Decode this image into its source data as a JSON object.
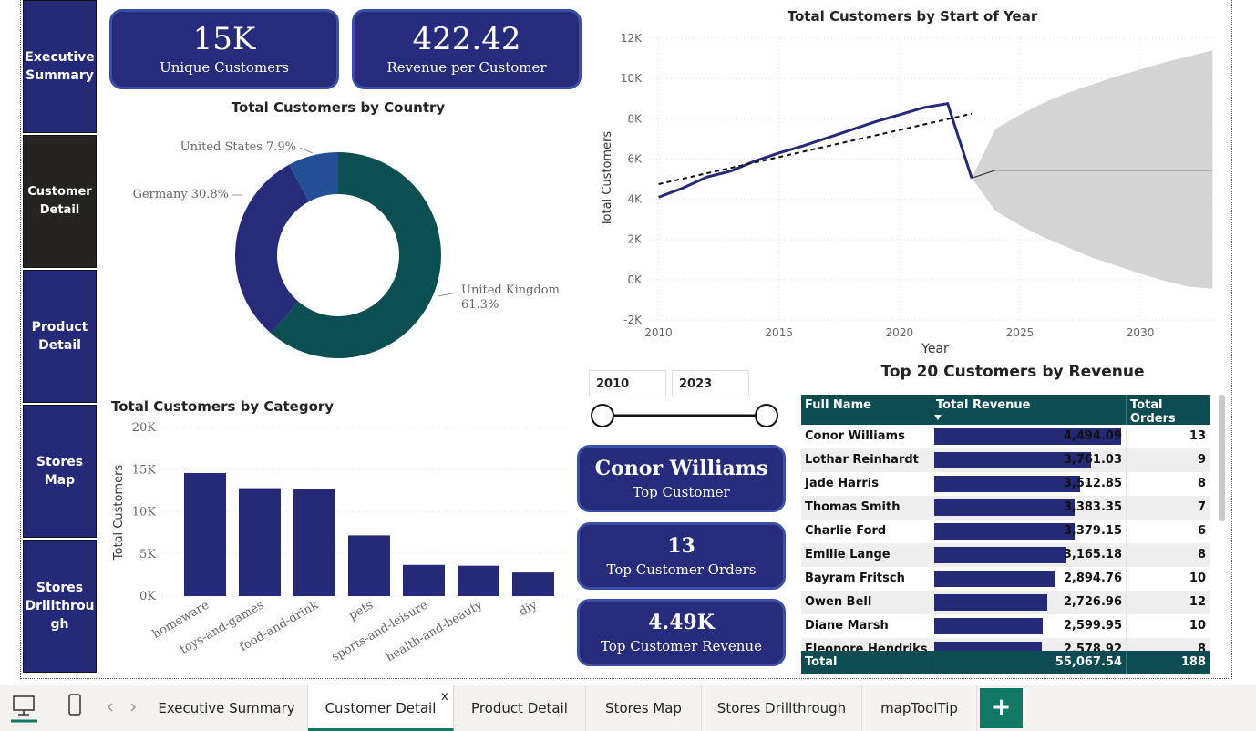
{
  "nav": {
    "items": [
      "Executive Summary",
      "Customer Detail",
      "Product Detail",
      "Stores Map",
      "Stores Drillthrough"
    ],
    "active": 1
  },
  "cards": [
    {
      "value": "15K",
      "label": "Unique Customers"
    },
    {
      "value": "422.42",
      "label": "Revenue per Customer"
    },
    {
      "value": "Conor Williams",
      "label": "Top Customer"
    },
    {
      "value": "13",
      "label": "Top Customer Orders"
    },
    {
      "value": "4.49K",
      "label": "Top Customer Revenue"
    }
  ],
  "chart_data": [
    {
      "type": "pie",
      "title": "Total Customers by Country",
      "donut": true,
      "categories": [
        "United Kingdom",
        "Germany",
        "United States"
      ],
      "values": [
        61.3,
        30.8,
        7.9
      ],
      "value_labels": [
        "61.3%",
        "30.8%",
        "7.9%"
      ],
      "colors": [
        "#0b4f52",
        "#262c7a",
        "#234f96"
      ]
    },
    {
      "type": "line",
      "title": "Total Customers by Start of Year",
      "x": [
        2010,
        2011,
        2012,
        2013,
        2014,
        2015,
        2016,
        2017,
        2018,
        2019,
        2020,
        2021,
        2022,
        2023
      ],
      "values": [
        4100,
        4550,
        5100,
        5400,
        5900,
        6300,
        6650,
        7050,
        7450,
        7850,
        8200,
        8550,
        8750,
        5050
      ],
      "color": "#252a78",
      "trend": {
        "x": [
          2010,
          2023
        ],
        "values": [
          4750,
          8250
        ],
        "color": "#111111"
      },
      "forecast": {
        "x": [
          2023,
          2024,
          2025,
          2026,
          2027,
          2028,
          2029,
          2030,
          2031,
          2032,
          2033
        ],
        "values": [
          5050,
          5450,
          5450,
          5450,
          5450,
          5450,
          5450,
          5450,
          5450,
          5450,
          5450
        ],
        "upper": [
          5050,
          7500,
          8200,
          8800,
          9300,
          9700,
          10100,
          10450,
          10800,
          11100,
          11400
        ],
        "lower": [
          5050,
          3400,
          2700,
          2100,
          1600,
          1100,
          700,
          300,
          -50,
          -350,
          -450
        ],
        "color": "#444444",
        "band_color": "#d4d4d4"
      },
      "xlim": [
        2009.6,
        2033.1
      ],
      "ylim": [
        -2000,
        12000
      ],
      "xticks": [
        2010,
        2015,
        2020,
        2025,
        2030
      ],
      "yticks": [
        {
          "value": -2000,
          "label": "-2K"
        },
        {
          "value": 0,
          "label": "0K"
        },
        {
          "value": 2000,
          "label": "2K"
        },
        {
          "value": 4000,
          "label": "4K"
        },
        {
          "value": 6000,
          "label": "6K"
        },
        {
          "value": 8000,
          "label": "8K"
        },
        {
          "value": 10000,
          "label": "10K"
        },
        {
          "value": 12000,
          "label": "12K"
        }
      ],
      "xlabel": "Year",
      "ylabel": "Total Customers",
      "grid": true
    },
    {
      "type": "bar",
      "title": "Total Customers by Category",
      "categories": [
        "homeware",
        "toys-and-games",
        "food-and-drink",
        "pets",
        "sports-and-leisure",
        "health-and-beauty",
        "diy"
      ],
      "values": [
        14600,
        12800,
        12700,
        7200,
        3700,
        3600,
        2800
      ],
      "color": "#252a78",
      "ylim": [
        0,
        20000
      ],
      "yticks": [
        {
          "value": 0,
          "label": "0K"
        },
        {
          "value": 5000,
          "label": "5K"
        },
        {
          "value": 10000,
          "label": "10K"
        },
        {
          "value": 15000,
          "label": "15K"
        },
        {
          "value": 20000,
          "label": "20K"
        }
      ],
      "ylabel": "Total Customers",
      "grid": true
    }
  ],
  "slicer": {
    "start": "2010",
    "end": "2023"
  },
  "table": {
    "title": "Top 20 Customers by Revenue",
    "columns": [
      "Full Name",
      "Total Revenue",
      "Total Orders"
    ],
    "rows": [
      {
        "name": "Conor Williams",
        "revenue": 4494.09,
        "revenue_label": "4,494.09",
        "orders": 13
      },
      {
        "name": "Lothar Reinhardt",
        "revenue": 3761.03,
        "revenue_label": "3,761.03",
        "orders": 9
      },
      {
        "name": "Jade Harris",
        "revenue": 3512.85,
        "revenue_label": "3,512.85",
        "orders": 8
      },
      {
        "name": "Thomas Smith",
        "revenue": 3383.35,
        "revenue_label": "3,383.35",
        "orders": 7
      },
      {
        "name": "Charlie Ford",
        "revenue": 3379.15,
        "revenue_label": "3,379.15",
        "orders": 6
      },
      {
        "name": "Emilie Lange",
        "revenue": 3165.18,
        "revenue_label": "3,165.18",
        "orders": 8
      },
      {
        "name": "Bayram Fritsch",
        "revenue": 2894.76,
        "revenue_label": "2,894.76",
        "orders": 10
      },
      {
        "name": "Owen Bell",
        "revenue": 2726.96,
        "revenue_label": "2,726.96",
        "orders": 12
      },
      {
        "name": "Diane Marsh",
        "revenue": 2599.95,
        "revenue_label": "2,599.95",
        "orders": 10
      },
      {
        "name": "Eleonore Hendriks",
        "revenue": 2578.92,
        "revenue_label": "2,578.92",
        "orders": 8
      }
    ],
    "bar_xlim": [
      0,
      4494.09
    ],
    "bar_color": "#252a78",
    "total": {
      "label": "Total",
      "revenue_label": "55,067.54",
      "orders": 188
    }
  },
  "tabs": {
    "items": [
      "Executive Summary",
      "Customer Detail",
      "Product Detail",
      "Stores Map",
      "Stores Drillthrough",
      "mapToolTip"
    ],
    "active": 1,
    "close": "x",
    "add": "+"
  }
}
